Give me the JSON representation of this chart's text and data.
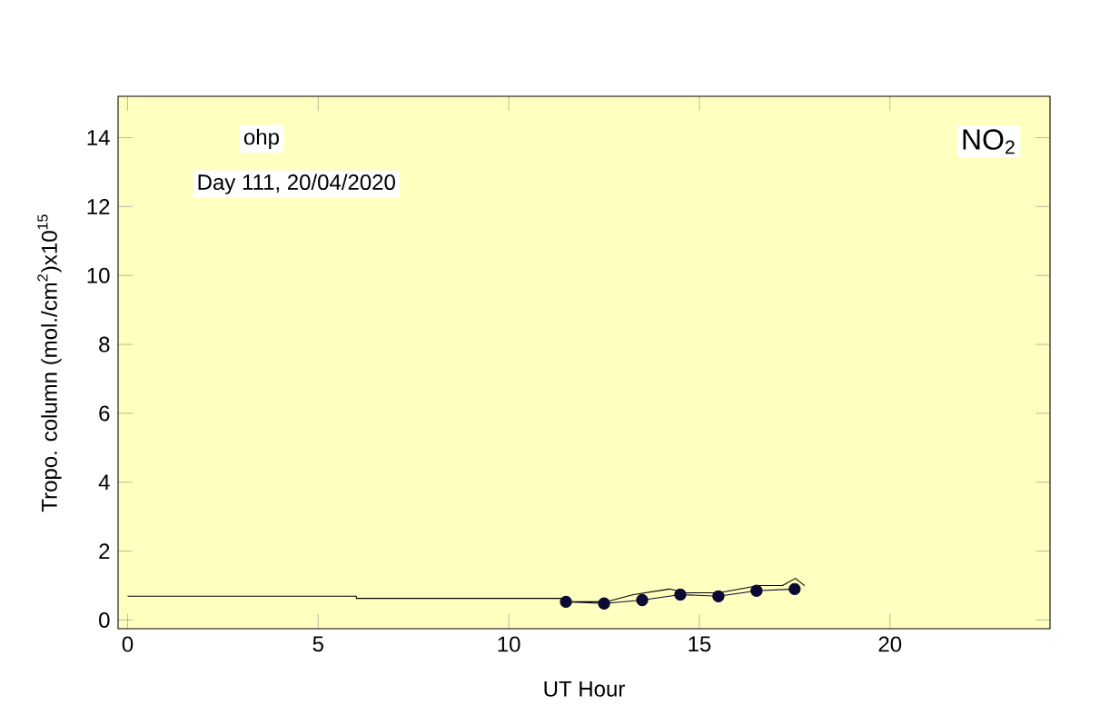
{
  "chart_data": {
    "type": "line",
    "xlabel": "UT Hour",
    "ylabel": "Tropo. column (mol./cm$^{2}$)x10$^{15}$",
    "annotations": [
      "ohp",
      "Day 111, 20/04/2020",
      "NO$_{2}$"
    ],
    "xlim": [
      -0.25,
      24.2
    ],
    "ylim": [
      -0.25,
      15.2
    ],
    "xticks": [
      0,
      5,
      10,
      15,
      20
    ],
    "yticks": [
      0,
      2,
      4,
      6,
      8,
      10,
      12,
      14
    ],
    "grid": false,
    "series": [
      {
        "color": "#000000",
        "x": [
          0,
          6,
          6,
          11.5
        ],
        "values": [
          0.69,
          0.69,
          0.63,
          0.63
        ],
        "marker": "none"
      },
      {
        "color": "#000000",
        "x": [
          11.6,
          12.55,
          13.27,
          14.22,
          14.65,
          15.51,
          16.56,
          17.18,
          17.52,
          17.76
        ],
        "values": [
          0.53,
          0.53,
          0.74,
          0.9,
          0.79,
          0.79,
          1.0,
          1.0,
          1.21,
          1.0
        ],
        "marker": "none"
      },
      {
        "color": "#0a0a33",
        "x": [
          11.5,
          12.5,
          13.5,
          14.5,
          15.5,
          16.5,
          17.5
        ],
        "values": [
          0.53,
          0.48,
          0.58,
          0.74,
          0.69,
          0.85,
          0.9
        ],
        "marker": "circle"
      }
    ]
  }
}
